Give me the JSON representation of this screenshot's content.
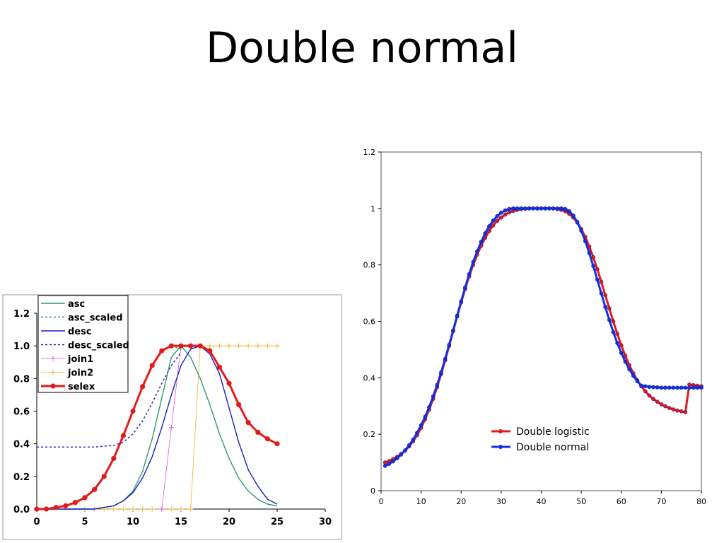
{
  "slide": {
    "title": "Double normal"
  },
  "chart_data": [
    {
      "type": "line",
      "title": "",
      "xlabel": "",
      "ylabel": "",
      "xlim": [
        0,
        30
      ],
      "ylim": [
        0,
        1.2
      ],
      "xticks": [
        0,
        5,
        10,
        15,
        20,
        25,
        30
      ],
      "xtick_labels": [
        "0",
        "5",
        "10",
        "15",
        "20",
        "25",
        "30"
      ],
      "yticks": [
        0,
        0.2,
        0.4,
        0.6,
        0.8,
        1.0,
        1.2
      ],
      "ytick_labels": [
        "0.0",
        "0.2",
        "0.4",
        "0.6",
        "0.8",
        "1.0",
        "1.2"
      ],
      "grid": false,
      "legend_position": "top-left",
      "series": [
        {
          "name": "asc",
          "color": "#2e9a6e",
          "style": "solid",
          "x": [
            0,
            1,
            2,
            3,
            4,
            5,
            6,
            7,
            8,
            9,
            10,
            11,
            12,
            13,
            14,
            15,
            16,
            17,
            18,
            19,
            20,
            21,
            22,
            23,
            24,
            25
          ],
          "y": [
            0.0,
            0.0,
            0.0,
            0.0,
            0.0,
            0.0,
            0.0,
            0.01,
            0.02,
            0.05,
            0.11,
            0.23,
            0.43,
            0.68,
            0.93,
            1.0,
            0.93,
            0.8,
            0.64,
            0.46,
            0.31,
            0.19,
            0.11,
            0.06,
            0.03,
            0.02
          ]
        },
        {
          "name": "asc_scaled",
          "color": "#2e9a6e",
          "style": "dashed",
          "x": [
            14,
            15
          ],
          "y": [
            1.0,
            0.98
          ]
        },
        {
          "name": "desc",
          "color": "#1b1bbf",
          "style": "solid",
          "x": [
            0,
            1,
            2,
            3,
            4,
            5,
            6,
            7,
            8,
            9,
            10,
            11,
            12,
            13,
            14,
            15,
            16,
            17,
            18,
            19,
            20,
            21,
            22,
            23,
            24,
            25
          ],
          "y": [
            0.0,
            0.0,
            0.0,
            0.0,
            0.0,
            0.0,
            0.0,
            0.01,
            0.02,
            0.05,
            0.1,
            0.19,
            0.32,
            0.5,
            0.7,
            0.88,
            0.98,
            1.0,
            0.95,
            0.83,
            0.62,
            0.41,
            0.24,
            0.14,
            0.06,
            0.03
          ]
        },
        {
          "name": "desc_scaled",
          "color": "#1b1bbf",
          "style": "dashed",
          "x": [
            0,
            2,
            4,
            6,
            7,
            8,
            9,
            10,
            11,
            12,
            13,
            14,
            15
          ],
          "y": [
            0.38,
            0.38,
            0.38,
            0.38,
            0.385,
            0.39,
            0.41,
            0.46,
            0.54,
            0.65,
            0.77,
            0.88,
            0.96
          ]
        },
        {
          "name": "join1",
          "color": "#e055d9",
          "style": "solid-marker",
          "x": [
            13,
            14,
            15
          ],
          "y": [
            0.0,
            0.5,
            1.0
          ]
        },
        {
          "name": "join2",
          "color": "#f2b32c",
          "style": "solid-marker",
          "x": [
            5,
            6,
            7,
            8,
            9,
            10,
            11,
            12,
            13,
            14,
            15,
            16,
            17,
            18,
            19,
            20,
            21,
            22,
            23,
            24,
            25
          ],
          "y": [
            0.0,
            0.0,
            0.0,
            0.0,
            0.0,
            0.0,
            0.0,
            0.0,
            0.0,
            0.0,
            0.0,
            0.0,
            1.0,
            1.0,
            1.0,
            1.0,
            1.0,
            1.0,
            1.0,
            1.0,
            1.0
          ]
        },
        {
          "name": "selex",
          "color": "#e21a1a",
          "style": "solid-dot",
          "x": [
            0,
            1,
            2,
            3,
            4,
            5,
            6,
            7,
            8,
            9,
            10,
            11,
            12,
            13,
            14,
            15,
            16,
            17,
            18,
            19,
            20,
            21,
            22,
            23,
            24,
            25
          ],
          "y": [
            0.0,
            0.0,
            0.01,
            0.02,
            0.04,
            0.07,
            0.12,
            0.2,
            0.31,
            0.45,
            0.6,
            0.75,
            0.88,
            0.97,
            1.0,
            1.0,
            1.0,
            1.0,
            0.97,
            0.87,
            0.77,
            0.64,
            0.53,
            0.47,
            0.43,
            0.4
          ]
        }
      ]
    },
    {
      "type": "line",
      "title": "",
      "xlabel": "",
      "ylabel": "",
      "xlim": [
        0,
        80
      ],
      "ylim": [
        0,
        1.2
      ],
      "xticks": [
        0,
        10,
        20,
        30,
        40,
        50,
        60,
        70,
        80
      ],
      "xtick_labels": [
        "0",
        "10",
        "20",
        "30",
        "40",
        "50",
        "60",
        "70",
        "80"
      ],
      "yticks": [
        0,
        0.2,
        0.4,
        0.6,
        0.8,
        1.0,
        1.2
      ],
      "ytick_labels": [
        "0",
        "0.2",
        "0.4",
        "0.6",
        "0.8",
        "1",
        "1.2"
      ],
      "grid": false,
      "legend_position": "bottom-right",
      "series": [
        {
          "name": "Double logistic",
          "color": "#e21a1a",
          "x": [
            1,
            2,
            3,
            4,
            5,
            6,
            7,
            8,
            9,
            10,
            11,
            12,
            13,
            14,
            15,
            16,
            17,
            18,
            19,
            20,
            21,
            22,
            23,
            24,
            25,
            26,
            27,
            28,
            29,
            30,
            31,
            32,
            33,
            34,
            35,
            36,
            37,
            38,
            39,
            40,
            41,
            42,
            43,
            44,
            45,
            46,
            47,
            48,
            49,
            50,
            51,
            52,
            53,
            54,
            55,
            56,
            57,
            58,
            59,
            60,
            61,
            62,
            63,
            64,
            65,
            66,
            67,
            68,
            69,
            70,
            71,
            72,
            73,
            74,
            75,
            76,
            77,
            78,
            79,
            80
          ],
          "y": [
            0.1,
            0.105,
            0.112,
            0.12,
            0.13,
            0.142,
            0.157,
            0.175,
            0.197,
            0.223,
            0.253,
            0.287,
            0.325,
            0.367,
            0.413,
            0.462,
            0.513,
            0.565,
            0.617,
            0.667,
            0.715,
            0.759,
            0.8,
            0.836,
            0.868,
            0.896,
            0.92,
            0.94,
            0.956,
            0.968,
            0.978,
            0.986,
            0.991,
            0.995,
            0.998,
            0.999,
            1.0,
            1.0,
            1.0,
            1.0,
            1.0,
            1.0,
            1.0,
            0.998,
            0.995,
            0.99,
            0.981,
            0.968,
            0.95,
            0.927,
            0.899,
            0.865,
            0.827,
            0.785,
            0.74,
            0.693,
            0.646,
            0.6,
            0.556,
            0.515,
            0.478,
            0.445,
            0.416,
            0.391,
            0.37,
            0.352,
            0.337,
            0.325,
            0.315,
            0.306,
            0.299,
            0.293,
            0.288,
            0.284,
            0.281,
            0.278,
            0.376,
            0.374,
            0.372,
            0.37
          ]
        },
        {
          "name": "Double normal",
          "color": "#1232e0",
          "x": [
            1,
            2,
            3,
            4,
            5,
            6,
            7,
            8,
            9,
            10,
            11,
            12,
            13,
            14,
            15,
            16,
            17,
            18,
            19,
            20,
            21,
            22,
            23,
            24,
            25,
            26,
            27,
            28,
            29,
            30,
            31,
            32,
            33,
            34,
            35,
            36,
            37,
            38,
            39,
            40,
            41,
            42,
            43,
            44,
            45,
            46,
            47,
            48,
            49,
            50,
            51,
            52,
            53,
            54,
            55,
            56,
            57,
            58,
            59,
            60,
            61,
            62,
            63,
            64,
            65,
            66,
            67,
            68,
            69,
            70,
            71,
            72,
            73,
            74,
            75,
            76,
            77,
            78,
            79,
            80
          ],
          "y": [
            0.088,
            0.095,
            0.104,
            0.115,
            0.128,
            0.143,
            0.161,
            0.181,
            0.205,
            0.232,
            0.262,
            0.296,
            0.334,
            0.375,
            0.419,
            0.467,
            0.517,
            0.568,
            0.62,
            0.671,
            0.72,
            0.767,
            0.81,
            0.848,
            0.882,
            0.912,
            0.937,
            0.957,
            0.973,
            0.985,
            0.993,
            0.998,
            1.0,
            1.0,
            1.0,
            1.0,
            1.0,
            1.0,
            1.0,
            1.0,
            1.0,
            1.0,
            1.0,
            1.0,
            1.0,
            0.998,
            0.99,
            0.975,
            0.952,
            0.921,
            0.884,
            0.842,
            0.796,
            0.748,
            0.699,
            0.651,
            0.605,
            0.562,
            0.523,
            0.488,
            0.457,
            0.43,
            0.407,
            0.388,
            0.372,
            0.37,
            0.368,
            0.367,
            0.366,
            0.365,
            0.365,
            0.365,
            0.365,
            0.365,
            0.365,
            0.365,
            0.365,
            0.365,
            0.365,
            0.365
          ]
        }
      ]
    }
  ]
}
